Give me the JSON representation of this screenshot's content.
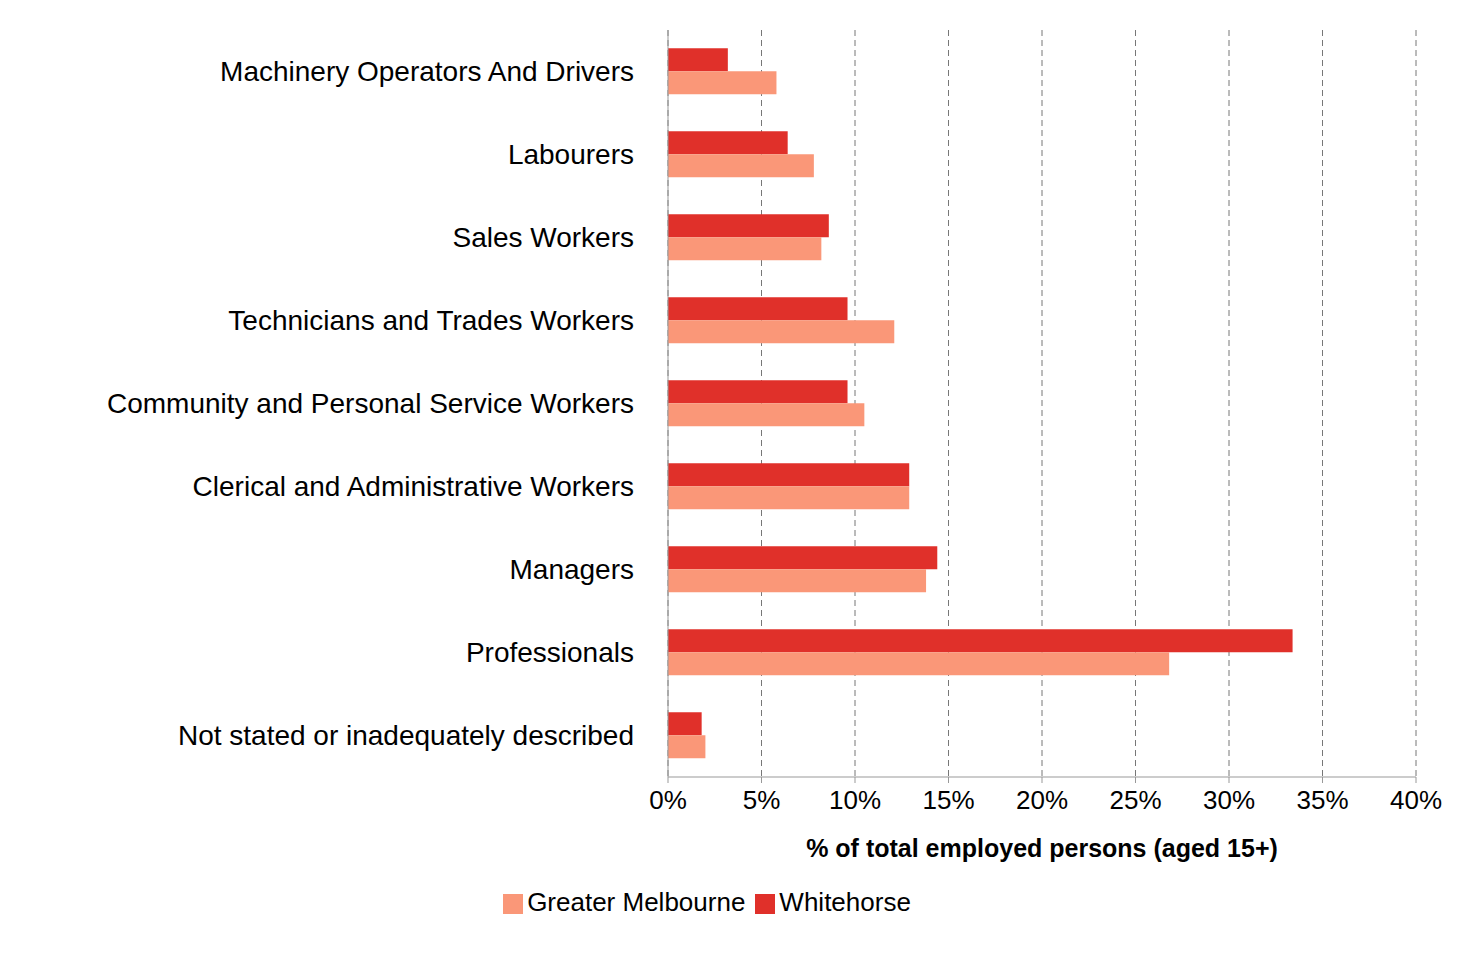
{
  "chart_data": {
    "type": "bar",
    "orientation": "horizontal",
    "categories": [
      "Machinery Operators And Drivers",
      "Labourers",
      "Sales Workers",
      "Technicians and Trades Workers",
      "Community and Personal Service Workers",
      "Clerical and Administrative Workers",
      "Managers",
      "Professionals",
      "Not stated or inadequately described"
    ],
    "series": [
      {
        "name": "Whitehorse",
        "color": "#e0302a",
        "values": [
          3.2,
          6.4,
          8.6,
          9.6,
          9.6,
          12.9,
          14.4,
          33.4,
          1.8
        ]
      },
      {
        "name": "Greater Melbourne",
        "color": "#fa9778",
        "values": [
          5.8,
          7.8,
          8.2,
          12.1,
          10.5,
          12.9,
          13.8,
          26.8,
          2.0
        ]
      }
    ],
    "x_label": "% of total employed persons (aged 15+)",
    "xlim": [
      0,
      40
    ],
    "xticks": [
      {
        "value": 0,
        "label": "0%"
      },
      {
        "value": 5,
        "label": "5%"
      },
      {
        "value": 10,
        "label": "10%"
      },
      {
        "value": 15,
        "label": "15%"
      },
      {
        "value": 20,
        "label": "20%"
      },
      {
        "value": 25,
        "label": "25%"
      },
      {
        "value": 30,
        "label": "30%"
      },
      {
        "value": 35,
        "label": "35%"
      },
      {
        "value": 40,
        "label": "40%"
      }
    ],
    "grid": true,
    "legend": "bottom"
  }
}
